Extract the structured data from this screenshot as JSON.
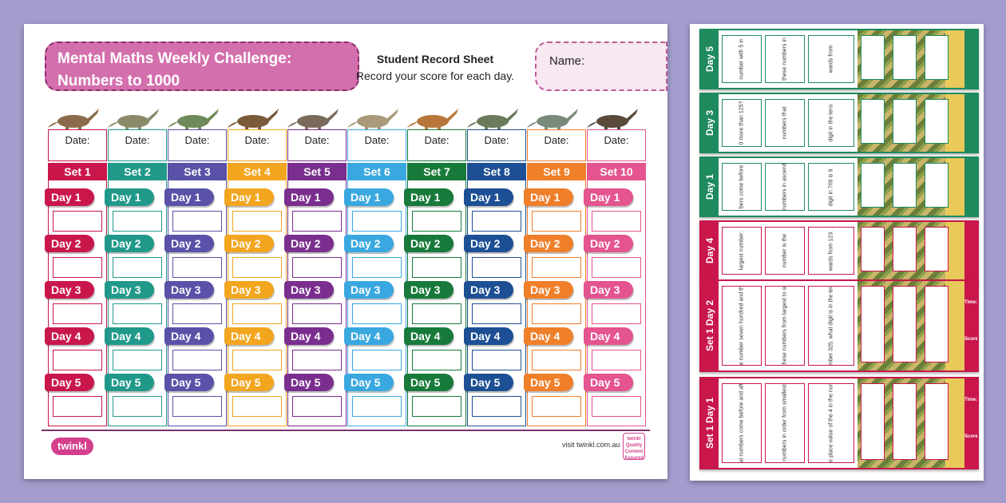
{
  "sheet": {
    "title_line1": "Mental Maths Weekly Challenge:",
    "title_line2": "Numbers to 1000",
    "record_title": "Student Record Sheet",
    "record_subtitle": "Record your score for each day.",
    "name_label": "Name:",
    "date_label": "Date:",
    "days": [
      "Day 1",
      "Day 2",
      "Day 3",
      "Day 4",
      "Day 5"
    ],
    "sets": [
      {
        "label": "Set 1",
        "color": "#c9174b"
      },
      {
        "label": "Set 2",
        "color": "#21998a"
      },
      {
        "label": "Set 3",
        "color": "#5a51a8"
      },
      {
        "label": "Set 4",
        "color": "#f2a51e"
      },
      {
        "label": "Set 5",
        "color": "#7a2e8e"
      },
      {
        "label": "Set 6",
        "color": "#3aa8e0"
      },
      {
        "label": "Set 7",
        "color": "#187a3a"
      },
      {
        "label": "Set 8",
        "color": "#1d4f94"
      },
      {
        "label": "Set 9",
        "color": "#f07f2a"
      },
      {
        "label": "Set 10",
        "color": "#e4548f"
      }
    ],
    "logo": "twinkl",
    "website": "visit twinkl.com.au",
    "badge_line1": "twinkl",
    "badge_line2": "Quality Content Assured"
  },
  "cards": [
    {
      "label": "Day 5",
      "color": "#1e8a5e",
      "q1": "number with 5 in",
      "q2": "these numbers in",
      "q3": "wards from"
    },
    {
      "label": "Day 3",
      "color": "#1e8a5e",
      "q1": "0 more than 125?",
      "q2": "numbers that",
      "q3": "digit in the tens"
    },
    {
      "label": "Day 1",
      "color": "#1e8a5e",
      "q1": "bers come before",
      "q2": "se numbers in ascending",
      "q3": "digit in 709 is 9."
    },
    {
      "label": "Day 4",
      "color": "#c9174b",
      "q1": "largest number:",
      "q2": "number is the",
      "q3": "wards from 123."
    },
    {
      "label": "Set 1 Day 2",
      "color": "#c9174b",
      "q1": "Write the number seven hundred and thirty four",
      "q2": "Order these numbers from largest to smallest",
      "q3": "In the number 325, what digit is in the tens place?"
    },
    {
      "label": "Set 1 Day 1",
      "color": "#c9174b",
      "q1": "What numbers come before and after?",
      "q2": "Put these numbers in order from smallest to largest",
      "q3": "What is the place value of the 4 in the number 462?"
    }
  ],
  "card_side": {
    "time": "Time:",
    "score": "Score:"
  },
  "icons": [
    "twinkl-logo",
    "dinosaur-illustration",
    "quality-badge-icon"
  ]
}
